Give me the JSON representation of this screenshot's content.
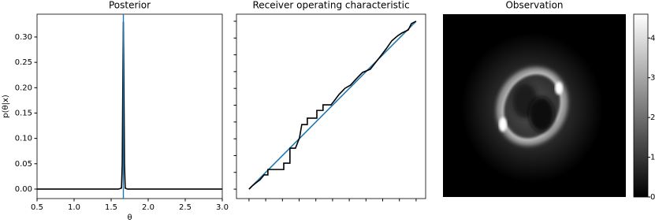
{
  "chart_data": [
    {
      "type": "line",
      "title": "Posterior",
      "xlabel": "θ",
      "ylabel": "p(θ|x)",
      "xlim": [
        0.5,
        3.0
      ],
      "ylim": [
        -0.0187,
        0.345
      ],
      "xticks": [
        0.5,
        {
          "value": 1,
          "label": "1.0"
        },
        1.5,
        {
          "value": 2,
          "label": "2.0"
        },
        2.5,
        {
          "value": 3,
          "label": "3.0"
        }
      ],
      "yticks": [
        {
          "value": 0,
          "label": "0.00"
        },
        {
          "value": 0.05,
          "label": "0.05"
        },
        {
          "value": 0.1,
          "label": "0.10"
        },
        {
          "value": 0.15,
          "label": "0.15"
        },
        {
          "value": 0.2,
          "label": "0.20"
        },
        {
          "value": 0.25,
          "label": "0.25"
        },
        {
          "value": 0.3,
          "label": "0.30"
        }
      ],
      "series": [
        {
          "color": "#000000",
          "x": [
            0.5,
            1.6,
            1.64,
            1.65,
            1.66,
            1.665,
            1.67,
            1.68,
            1.69,
            1.72,
            3.0
          ],
          "values": [
            0,
            0,
            0.002,
            0.05,
            0.25,
            0.33,
            0.25,
            0.05,
            0.002,
            0,
            0
          ]
        }
      ],
      "vlines": [
        {
          "x": 1.665,
          "color": "#1f77b4"
        }
      ]
    },
    {
      "type": "line",
      "title": "Receiver operating characteristic",
      "xlim": [
        -0.075,
        1.057
      ],
      "ylim": [
        -0.056,
        1.042
      ],
      "xticks": [
        0,
        0.1,
        0.2,
        0.3,
        0.4,
        0.5,
        0.6,
        0.7,
        0.8,
        0.9,
        1
      ],
      "yticks": [
        0,
        0.1,
        0.2,
        0.3,
        0.4,
        0.5,
        0.6,
        0.7,
        0.8,
        0.9,
        1
      ],
      "tick_labels": false,
      "series": [
        {
          "color": "#1f77b4",
          "x": [
            0,
            1
          ],
          "values": [
            0,
            1
          ]
        },
        {
          "color": "#000000",
          "x": [
            0,
            0.019,
            0.042,
            0.066,
            0.09,
            0.113,
            0.113,
            0.208,
            0.208,
            0.245,
            0.245,
            0.278,
            0.302,
            0.316,
            0.349,
            0.349,
            0.406,
            0.406,
            0.443,
            0.443,
            0.491,
            0.514,
            0.538,
            0.575,
            0.608,
            0.642,
            0.679,
            0.726,
            0.755,
            0.792,
            0.821,
            0.854,
            0.892,
            0.915,
            0.953,
            0.972,
            1
          ],
          "values": [
            0,
            0.019,
            0.038,
            0.056,
            0.085,
            0.085,
            0.117,
            0.117,
            0.155,
            0.155,
            0.244,
            0.244,
            0.305,
            0.385,
            0.385,
            0.423,
            0.423,
            0.469,
            0.469,
            0.502,
            0.502,
            0.531,
            0.563,
            0.601,
            0.62,
            0.657,
            0.695,
            0.714,
            0.751,
            0.798,
            0.836,
            0.883,
            0.915,
            0.93,
            0.948,
            0.986,
            1
          ]
        }
      ]
    },
    {
      "type": "image",
      "title": "Observation",
      "clim": [
        0,
        4.6
      ],
      "cticks": [
        0,
        1,
        2,
        3,
        4
      ]
    }
  ]
}
